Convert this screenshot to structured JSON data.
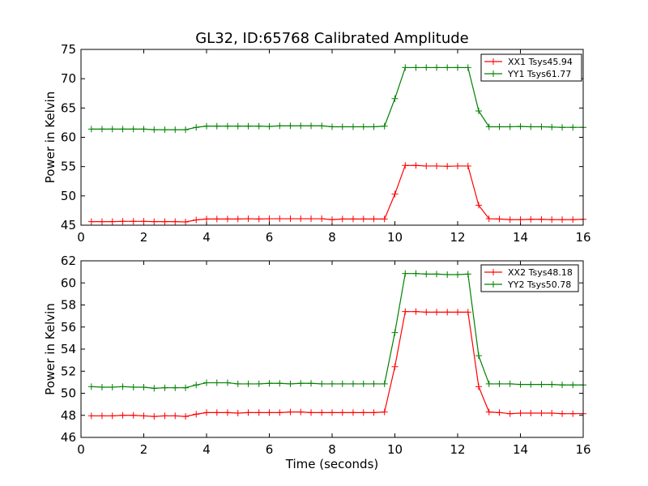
{
  "figure": {
    "title": "GL32, ID:65768 Calibrated Amplitude"
  },
  "chart_data": [
    {
      "type": "line",
      "title": "GL32, ID:65768 Calibrated Amplitude",
      "xlabel": "",
      "ylabel": "Power in Kelvin",
      "xlim": [
        0,
        16
      ],
      "ylim": [
        45,
        75
      ],
      "xticks": [
        0,
        2,
        4,
        6,
        8,
        10,
        12,
        14,
        16
      ],
      "yticks": [
        45,
        50,
        55,
        60,
        65,
        70,
        75
      ],
      "grid": false,
      "legend": "top-right",
      "x": [
        0.33,
        0.67,
        1.0,
        1.33,
        1.67,
        2.0,
        2.33,
        2.67,
        3.0,
        3.33,
        3.67,
        4.0,
        4.33,
        4.67,
        5.0,
        5.33,
        5.67,
        6.0,
        6.33,
        6.67,
        7.0,
        7.33,
        7.67,
        8.0,
        8.33,
        8.67,
        9.0,
        9.33,
        9.67,
        10.0,
        10.33,
        10.67,
        11.0,
        11.33,
        11.67,
        12.0,
        12.33,
        12.67,
        13.0,
        13.33,
        13.67,
        14.0,
        14.33,
        14.67,
        15.0,
        15.33,
        15.67,
        16.0
      ],
      "series": [
        {
          "name": "XX1 Tsys45.94",
          "color": "#ff0000",
          "values": [
            45.6,
            45.6,
            45.6,
            45.65,
            45.65,
            45.65,
            45.6,
            45.6,
            45.6,
            45.55,
            45.9,
            46.05,
            46.05,
            46.05,
            46.05,
            46.1,
            46.05,
            46.1,
            46.1,
            46.1,
            46.1,
            46.1,
            46.1,
            45.95,
            46.05,
            46.05,
            46.05,
            46.05,
            46.05,
            50.3,
            55.2,
            55.2,
            55.1,
            55.1,
            55.05,
            55.1,
            55.1,
            48.4,
            46.1,
            46.05,
            45.95,
            45.95,
            46.0,
            46.0,
            45.95,
            45.95,
            45.95,
            46.0
          ]
        },
        {
          "name": "YY1 Tsys61.77",
          "color": "#008000",
          "values": [
            61.4,
            61.4,
            61.4,
            61.4,
            61.4,
            61.4,
            61.3,
            61.3,
            61.3,
            61.3,
            61.7,
            61.9,
            61.9,
            61.9,
            61.9,
            61.9,
            61.9,
            61.85,
            61.95,
            61.95,
            61.95,
            61.95,
            61.95,
            61.8,
            61.8,
            61.8,
            61.8,
            61.8,
            61.9,
            66.6,
            71.9,
            71.9,
            71.9,
            71.9,
            71.9,
            71.9,
            71.9,
            64.5,
            61.8,
            61.8,
            61.8,
            61.85,
            61.8,
            61.8,
            61.75,
            61.7,
            61.7,
            61.7
          ]
        }
      ]
    },
    {
      "type": "line",
      "title": "",
      "xlabel": "Time (seconds)",
      "ylabel": "Power in Kelvin",
      "xlim": [
        0,
        16
      ],
      "ylim": [
        46,
        62
      ],
      "xticks": [
        0,
        2,
        4,
        6,
        8,
        10,
        12,
        14,
        16
      ],
      "yticks": [
        46,
        48,
        50,
        52,
        54,
        56,
        58,
        60,
        62
      ],
      "grid": false,
      "legend": "top-right",
      "x": [
        0.33,
        0.67,
        1.0,
        1.33,
        1.67,
        2.0,
        2.33,
        2.67,
        3.0,
        3.33,
        3.67,
        4.0,
        4.33,
        4.67,
        5.0,
        5.33,
        5.67,
        6.0,
        6.33,
        6.67,
        7.0,
        7.33,
        7.67,
        8.0,
        8.33,
        8.67,
        9.0,
        9.33,
        9.67,
        10.0,
        10.33,
        10.67,
        11.0,
        11.33,
        11.67,
        12.0,
        12.33,
        12.67,
        13.0,
        13.33,
        13.67,
        14.0,
        14.33,
        14.67,
        15.0,
        15.33,
        15.67,
        16.0
      ],
      "series": [
        {
          "name": "XX2 Tsys48.18",
          "color": "#ff0000",
          "values": [
            47.95,
            47.95,
            47.95,
            48.0,
            48.0,
            47.95,
            47.9,
            47.95,
            47.95,
            47.9,
            48.1,
            48.25,
            48.25,
            48.25,
            48.2,
            48.25,
            48.25,
            48.25,
            48.25,
            48.3,
            48.3,
            48.25,
            48.25,
            48.25,
            48.25,
            48.25,
            48.25,
            48.25,
            48.3,
            52.4,
            57.4,
            57.4,
            57.35,
            57.35,
            57.35,
            57.35,
            57.35,
            50.6,
            48.3,
            48.25,
            48.15,
            48.2,
            48.2,
            48.2,
            48.2,
            48.15,
            48.15,
            48.15
          ]
        },
        {
          "name": "YY2 Tsys50.78",
          "color": "#008000",
          "values": [
            50.6,
            50.55,
            50.55,
            50.6,
            50.55,
            50.55,
            50.45,
            50.5,
            50.5,
            50.5,
            50.75,
            50.95,
            50.95,
            50.95,
            50.85,
            50.85,
            50.85,
            50.9,
            50.9,
            50.85,
            50.9,
            50.9,
            50.85,
            50.85,
            50.85,
            50.85,
            50.85,
            50.85,
            50.85,
            55.5,
            60.85,
            60.85,
            60.8,
            60.8,
            60.75,
            60.75,
            60.8,
            53.4,
            50.85,
            50.85,
            50.85,
            50.8,
            50.8,
            50.8,
            50.8,
            50.75,
            50.75,
            50.75
          ]
        }
      ]
    }
  ]
}
